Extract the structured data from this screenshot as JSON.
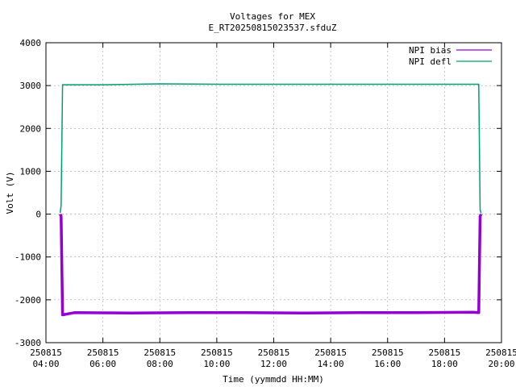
{
  "chart_data": {
    "type": "line",
    "title": "Voltages for MEX",
    "subtitle": "E_RT20250815023537.sfduZ",
    "xlabel": "Time (yymmdd HH:MM)",
    "ylabel": "Volt (V)",
    "xlim": [
      "2025-08-15 04:00",
      "2025-08-15 20:00"
    ],
    "ylim": [
      -3000,
      4000
    ],
    "grid": true,
    "legend_position": "top-right",
    "x_ticks": [
      {
        "date": "250815",
        "time": "04:00"
      },
      {
        "date": "250815",
        "time": "06:00"
      },
      {
        "date": "250815",
        "time": "08:00"
      },
      {
        "date": "250815",
        "time": "10:00"
      },
      {
        "date": "250815",
        "time": "12:00"
      },
      {
        "date": "250815",
        "time": "14:00"
      },
      {
        "date": "250815",
        "time": "16:00"
      },
      {
        "date": "250815",
        "time": "18:00"
      },
      {
        "date": "250815",
        "time": "20:00"
      }
    ],
    "y_ticks": [
      "4000",
      "3000",
      "2000",
      "1000",
      "0",
      "-1000",
      "-2000",
      "-3000"
    ],
    "series": [
      {
        "name": "NPI bias",
        "color": "#9400d3",
        "points": [
          [
            "2025-08-15 04:30",
            0
          ],
          [
            "2025-08-15 04:32",
            -50
          ],
          [
            "2025-08-15 04:35",
            -2350
          ],
          [
            "2025-08-15 05:00",
            -2300
          ],
          [
            "2025-08-15 07:00",
            -2310
          ],
          [
            "2025-08-15 09:00",
            -2300
          ],
          [
            "2025-08-15 11:00",
            -2300
          ],
          [
            "2025-08-15 13:00",
            -2310
          ],
          [
            "2025-08-15 15:00",
            -2300
          ],
          [
            "2025-08-15 17:00",
            -2300
          ],
          [
            "2025-08-15 19:00",
            -2290
          ],
          [
            "2025-08-15 19:12",
            -2300
          ],
          [
            "2025-08-15 19:15",
            -50
          ],
          [
            "2025-08-15 19:17",
            0
          ]
        ]
      },
      {
        "name": "NPI defl",
        "color": "#009e73",
        "points": [
          [
            "2025-08-15 04:30",
            30
          ],
          [
            "2025-08-15 04:32",
            200
          ],
          [
            "2025-08-15 04:35",
            3020
          ],
          [
            "2025-08-15 06:00",
            3020
          ],
          [
            "2025-08-15 08:00",
            3040
          ],
          [
            "2025-08-15 10:00",
            3030
          ],
          [
            "2025-08-15 12:00",
            3030
          ],
          [
            "2025-08-15 14:00",
            3030
          ],
          [
            "2025-08-15 16:00",
            3030
          ],
          [
            "2025-08-15 18:00",
            3030
          ],
          [
            "2025-08-15 19:12",
            3030
          ],
          [
            "2025-08-15 19:15",
            100
          ],
          [
            "2025-08-15 19:17",
            20
          ]
        ]
      }
    ]
  }
}
